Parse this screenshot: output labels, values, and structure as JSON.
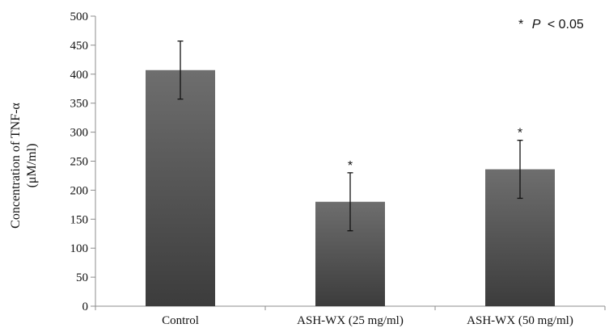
{
  "chart_data": {
    "type": "bar",
    "ylabel_line1": "Concentration of TNF-α",
    "ylabel_line2": "(μM/ml)",
    "categories": [
      "Control",
      "ASH-WX (25 mg/ml)",
      "ASH-WX (50 mg/ml)"
    ],
    "values": [
      407,
      180,
      236
    ],
    "errors": [
      50,
      50,
      50
    ],
    "significance": [
      "",
      "*",
      "*"
    ],
    "ylim": [
      0,
      500
    ],
    "yticks": [
      0,
      50,
      100,
      150,
      200,
      250,
      300,
      350,
      400,
      450,
      500
    ],
    "grid": false,
    "legend": "none",
    "annotation": {
      "star": "*",
      "p": "P",
      "rest": "< 0.05"
    },
    "colors": {
      "bar_top": "#6e6e6e",
      "bar_bottom": "#3c3c3c",
      "axis": "#8c8c8c",
      "error": "#111111"
    }
  }
}
